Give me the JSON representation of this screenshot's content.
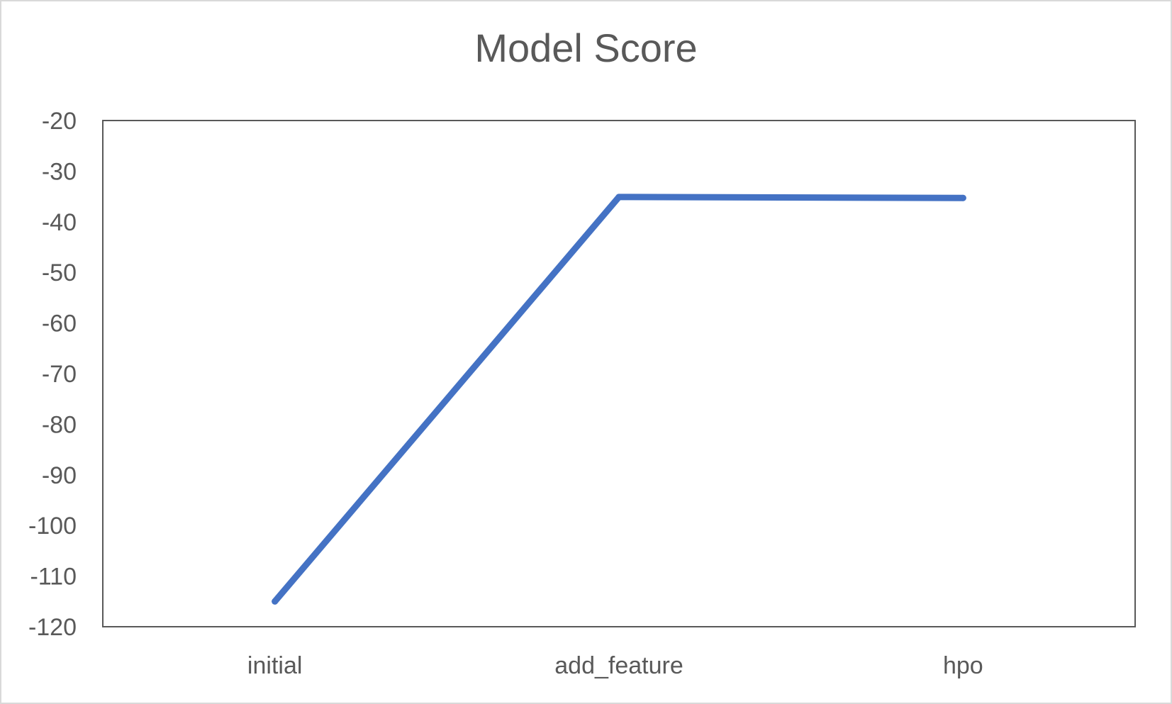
{
  "chart_data": {
    "type": "line",
    "title": "Model Score",
    "xlabel": "",
    "ylabel": "",
    "categories": [
      "initial",
      "add_feature",
      "hpo"
    ],
    "series": [
      {
        "values": [
          -115,
          -35.1,
          -35.3
        ],
        "color": "#4472c4"
      }
    ],
    "ylim": [
      -120,
      -20
    ],
    "yticks": [
      -20,
      -30,
      -40,
      -50,
      -60,
      -70,
      -80,
      -90,
      -100,
      -110,
      -120
    ],
    "grid": false,
    "legend": "none"
  }
}
